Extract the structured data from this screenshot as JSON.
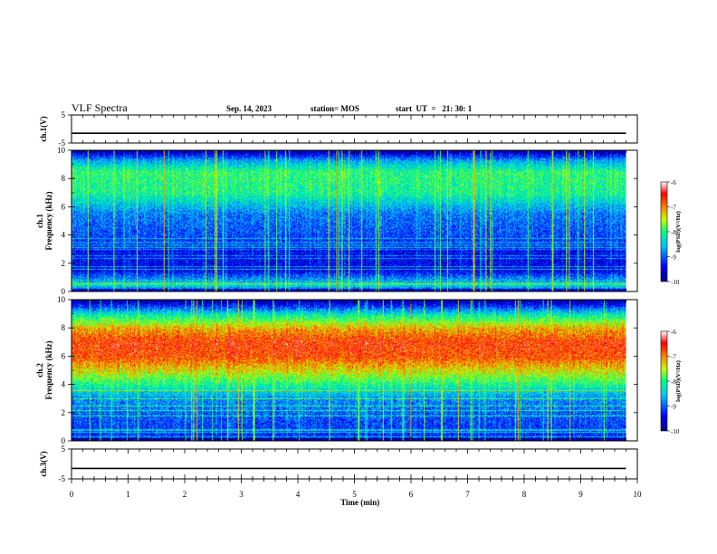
{
  "header": {
    "title": "VLF Spectra",
    "date": "Sep. 14, 2023",
    "station": "station= MOS",
    "start": "start  UT  =   21: 30: 1"
  },
  "chart_data": {
    "type": "heatmap",
    "title": "VLF Spectra",
    "xlabel": "Time  (min)",
    "xlim": [
      0,
      10
    ],
    "x_ticks": [
      "0",
      "1",
      "2",
      "3",
      "4",
      "5",
      "6",
      "7",
      "8",
      "9",
      "10"
    ],
    "panels": [
      {
        "id": "ch1v",
        "kind": "waveform",
        "ylabel": "ch.1(V)",
        "ylim": [
          -5,
          5
        ],
        "y_ticks": [
          "5",
          "-5"
        ],
        "trace_level": -1.5,
        "trace_end_min": 9.8
      },
      {
        "id": "ch1",
        "kind": "spectrogram",
        "ylabel": "ch.1  Frequency (kHz)",
        "ylim": [
          0,
          10
        ],
        "y_ticks": [
          "0",
          "2",
          "4",
          "6",
          "8",
          "10"
        ],
        "data_end_min": 9.8,
        "description": "broadband sferics 5-9 kHz with intermittent vertical impulsive lines; persistent narrowband lines below 4 kHz",
        "band_profile_log10": [
          [
            0.0,
            -9.2
          ],
          [
            0.5,
            -8.2
          ],
          [
            1.5,
            -9.4
          ],
          [
            3.0,
            -9.3
          ],
          [
            4.0,
            -9.0
          ],
          [
            5.5,
            -8.8
          ],
          [
            7.0,
            -8.0
          ],
          [
            8.5,
            -7.9
          ],
          [
            9.3,
            -8.6
          ],
          [
            10.0,
            -9.8
          ]
        ],
        "colorbar": {
          "label": "log(PSD)(V²/Hz)",
          "range": [
            -10,
            -6
          ],
          "ticks": [
            "-6",
            "-7",
            "-8",
            "-9",
            "-10"
          ]
        }
      },
      {
        "id": "ch2",
        "kind": "spectrogram",
        "ylabel": "ch.2  Frequency (kHz)",
        "ylim": [
          0,
          10
        ],
        "y_ticks": [
          "0",
          "2",
          "4",
          "6",
          "8",
          "10"
        ],
        "data_end_min": 9.8,
        "description": "intense broadband emission centred near 6-7 kHz spanning about 4-9 kHz",
        "band_profile_log10": [
          [
            0.0,
            -9.2
          ],
          [
            1.5,
            -9.0
          ],
          [
            3.0,
            -8.7
          ],
          [
            4.0,
            -8.0
          ],
          [
            5.0,
            -7.3
          ],
          [
            6.0,
            -6.7
          ],
          [
            7.0,
            -6.6
          ],
          [
            8.0,
            -7.1
          ],
          [
            9.0,
            -8.2
          ],
          [
            9.6,
            -9.2
          ],
          [
            10.0,
            -9.8
          ]
        ],
        "colorbar": {
          "label": "log(PSD)(V²/Hz)",
          "range": [
            -10,
            -6
          ],
          "ticks": [
            "-6",
            "-7",
            "-8",
            "-9",
            "-10"
          ]
        }
      },
      {
        "id": "ch3v",
        "kind": "waveform",
        "ylabel": "ch.3(V)",
        "ylim": [
          -5,
          5
        ],
        "y_ticks": [
          "5",
          "-5"
        ],
        "trace_level": -1.5,
        "trace_end_min": 9.8
      }
    ],
    "colormap": [
      "#000080",
      "#0000ff",
      "#00c0ff",
      "#00ff80",
      "#c0ff00",
      "#ff8000",
      "#ff0000",
      "#ffffff"
    ],
    "grid": false
  }
}
